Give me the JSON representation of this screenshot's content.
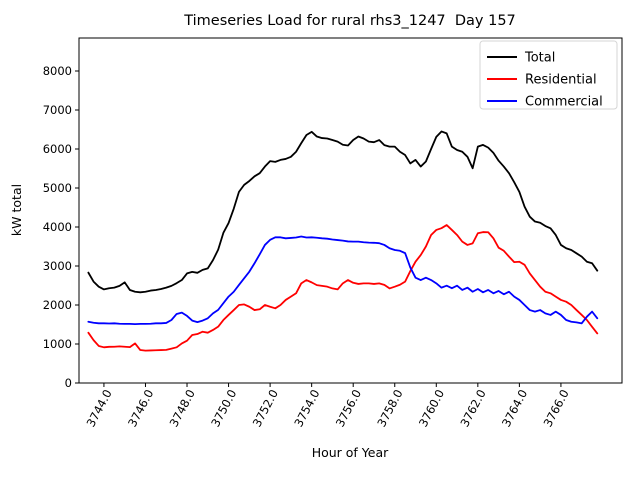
{
  "title": "Timeseries Load for rural rhs3_1247  Day 157",
  "xlabel": "Hour of Year",
  "ylabel": "kW total",
  "legend": [
    {
      "label": "Total",
      "color": "#000000"
    },
    {
      "label": "Residential",
      "color": "#ff0000"
    },
    {
      "label": "Commercial",
      "color": "#0000ff"
    }
  ],
  "chart_data": {
    "type": "line",
    "title": "Timeseries Load for rural rhs3_1247  Day 157",
    "xlabel": "Hour of Year",
    "ylabel": "kW total",
    "grid": false,
    "legend_position": "upper right",
    "xlim": [
      3742.8,
      3768.94
    ],
    "ylim": [
      0,
      8846
    ],
    "xticks": [
      3744,
      3746,
      3748,
      3750,
      3752,
      3754,
      3756,
      3758,
      3760,
      3762,
      3764,
      3766
    ],
    "xtick_labels": [
      "3744.0",
      "3746.0",
      "3748.0",
      "3750.0",
      "3752.0",
      "3754.0",
      "3756.0",
      "3758.0",
      "3760.0",
      "3762.0",
      "3764.0",
      "3766.0"
    ],
    "yticks": [
      0,
      1000,
      2000,
      3000,
      4000,
      5000,
      6000,
      7000,
      8000
    ],
    "ytick_labels": [
      "0",
      "1000",
      "2000",
      "3000",
      "4000",
      "5000",
      "6000",
      "7000",
      "8000"
    ],
    "xtick_rotation_deg": 62,
    "x": [
      3743.25,
      3743.5,
      3743.75,
      3744,
      3744.25,
      3744.5,
      3744.75,
      3745,
      3745.25,
      3745.5,
      3745.75,
      3746,
      3746.25,
      3746.5,
      3746.75,
      3747,
      3747.25,
      3747.5,
      3747.75,
      3748,
      3748.25,
      3748.5,
      3748.75,
      3749,
      3749.25,
      3749.5,
      3749.75,
      3750,
      3750.25,
      3750.5,
      3750.75,
      3751,
      3751.25,
      3751.5,
      3751.75,
      3752,
      3752.25,
      3752.5,
      3752.75,
      3753,
      3753.25,
      3753.5,
      3753.75,
      3754,
      3754.25,
      3754.5,
      3754.75,
      3755,
      3755.25,
      3755.5,
      3755.75,
      3756,
      3756.25,
      3756.5,
      3756.75,
      3757,
      3757.25,
      3757.5,
      3757.75,
      3758,
      3758.25,
      3758.5,
      3758.75,
      3759,
      3759.25,
      3759.5,
      3759.75,
      3760,
      3760.25,
      3760.5,
      3760.75,
      3761,
      3761.25,
      3761.5,
      3761.75,
      3762,
      3762.25,
      3762.5,
      3762.75,
      3763,
      3763.25,
      3763.5,
      3763.75,
      3764,
      3764.25,
      3764.5,
      3764.75,
      3765,
      3765.25,
      3765.5,
      3765.75,
      3766,
      3766.25,
      3766.5,
      3766.75,
      3767,
      3767.25,
      3767.5,
      3767.75
    ],
    "series": [
      {
        "name": "Total",
        "color": "#000000",
        "values": [
          2830,
          2600,
          2470,
          2400,
          2430,
          2445,
          2490,
          2580,
          2385,
          2340,
          2325,
          2340,
          2370,
          2385,
          2410,
          2445,
          2490,
          2560,
          2640,
          2810,
          2850,
          2825,
          2900,
          2940,
          3150,
          3420,
          3850,
          4100,
          4470,
          4900,
          5080,
          5180,
          5300,
          5380,
          5550,
          5690,
          5670,
          5720,
          5745,
          5800,
          5930,
          6150,
          6360,
          6440,
          6320,
          6280,
          6270,
          6230,
          6190,
          6110,
          6090,
          6230,
          6320,
          6270,
          6190,
          6175,
          6230,
          6100,
          6060,
          6060,
          5930,
          5845,
          5630,
          5720,
          5550,
          5680,
          6000,
          6310,
          6450,
          6400,
          6060,
          5975,
          5930,
          5800,
          5505,
          6060,
          6105,
          6035,
          5900,
          5700,
          5550,
          5380,
          5150,
          4900,
          4520,
          4265,
          4140,
          4110,
          4025,
          3965,
          3795,
          3540,
          3455,
          3410,
          3325,
          3240,
          3110,
          3070,
          2880
        ]
      },
      {
        "name": "Residential",
        "color": "#ff0000",
        "values": [
          1290,
          1100,
          950,
          915,
          928,
          930,
          940,
          930,
          920,
          1015,
          845,
          830,
          835,
          840,
          845,
          850,
          880,
          915,
          1015,
          1085,
          1230,
          1255,
          1315,
          1290,
          1360,
          1445,
          1615,
          1745,
          1870,
          2000,
          2015,
          1955,
          1870,
          1890,
          2000,
          1955,
          1915,
          2000,
          2130,
          2215,
          2300,
          2555,
          2640,
          2580,
          2510,
          2490,
          2470,
          2425,
          2400,
          2555,
          2640,
          2570,
          2540,
          2555,
          2555,
          2540,
          2555,
          2515,
          2425,
          2470,
          2520,
          2600,
          2870,
          3110,
          3280,
          3500,
          3795,
          3925,
          3970,
          4050,
          3925,
          3795,
          3625,
          3540,
          3580,
          3840,
          3870,
          3865,
          3710,
          3470,
          3390,
          3240,
          3100,
          3110,
          3030,
          2810,
          2640,
          2470,
          2340,
          2300,
          2215,
          2130,
          2085,
          2000,
          1870,
          1745,
          1615,
          1440,
          1270
        ]
      },
      {
        "name": "Commercial",
        "color": "#0000ff",
        "values": [
          1570,
          1545,
          1530,
          1530,
          1525,
          1530,
          1520,
          1515,
          1515,
          1510,
          1515,
          1515,
          1520,
          1530,
          1530,
          1540,
          1615,
          1770,
          1805,
          1720,
          1600,
          1560,
          1600,
          1660,
          1785,
          1875,
          2045,
          2215,
          2340,
          2515,
          2685,
          2855,
          3070,
          3300,
          3540,
          3670,
          3735,
          3735,
          3710,
          3720,
          3730,
          3755,
          3730,
          3735,
          3725,
          3710,
          3700,
          3680,
          3665,
          3650,
          3630,
          3625,
          3625,
          3610,
          3600,
          3595,
          3585,
          3540,
          3455,
          3410,
          3390,
          3330,
          2960,
          2700,
          2640,
          2700,
          2640,
          2555,
          2445,
          2495,
          2430,
          2495,
          2385,
          2445,
          2340,
          2410,
          2325,
          2385,
          2300,
          2360,
          2275,
          2340,
          2215,
          2130,
          2000,
          1870,
          1830,
          1870,
          1785,
          1745,
          1830,
          1745,
          1615,
          1570,
          1555,
          1530,
          1700,
          1830,
          1660
        ]
      }
    ]
  }
}
